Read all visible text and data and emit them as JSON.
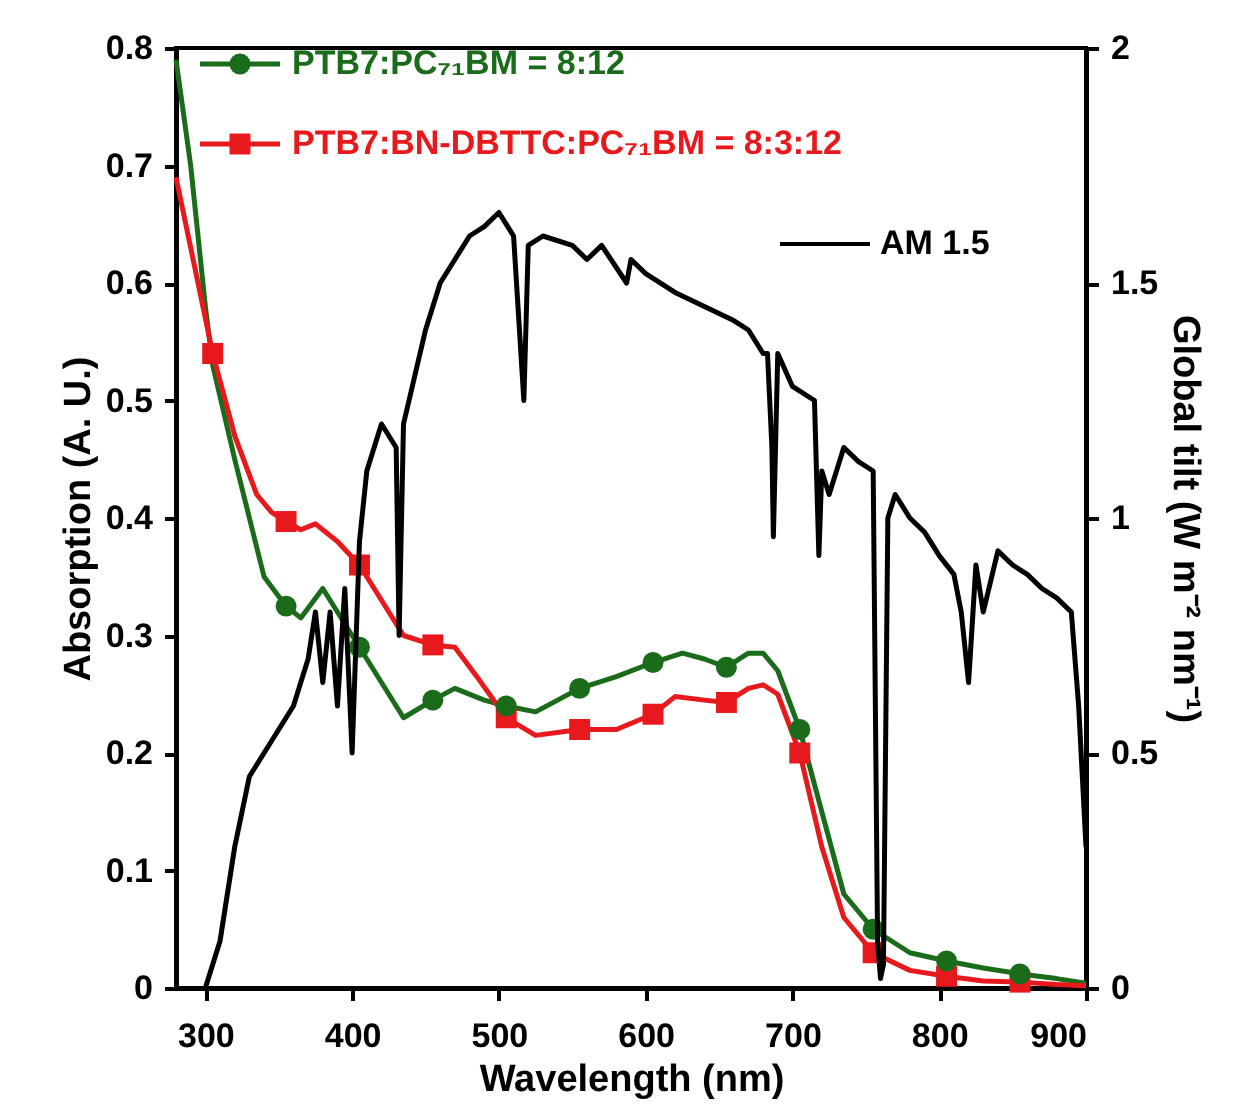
{
  "chart_data": {
    "type": "line",
    "xlabel": "Wavelength (nm)",
    "ylabel": "Absorption (A. U.)",
    "y2label": "Global tilt  (W m⁻² nm⁻¹)",
    "xlim": [
      280,
      900
    ],
    "xticks": [
      300,
      400,
      500,
      600,
      700,
      800,
      900
    ],
    "ylim": [
      0,
      0.8
    ],
    "yticks": [
      0,
      0.1,
      0.2,
      0.3,
      0.4,
      0.5,
      0.6,
      0.7,
      0.8
    ],
    "y2lim": [
      0,
      2
    ],
    "y2ticks": [
      0,
      0.5,
      1,
      1.5,
      2
    ],
    "grid": false,
    "legend": "top left",
    "series": [
      {
        "name": "PTB7:PC₇₁BM = 8:12",
        "color": "#1a6b1a",
        "marker": "none",
        "x": [
          280,
          290,
          300,
          305,
          320,
          330,
          340,
          355,
          365,
          380,
          395,
          405,
          420,
          435,
          455,
          470,
          490,
          505,
          525,
          555,
          580,
          605,
          625,
          640,
          655,
          670,
          680,
          690,
          705,
          720,
          735,
          755,
          780,
          805,
          830,
          855,
          880,
          900
        ],
        "values": [
          0.79,
          0.7,
          0.58,
          0.53,
          0.45,
          0.4,
          0.35,
          0.325,
          0.315,
          0.34,
          0.31,
          0.29,
          0.26,
          0.23,
          0.245,
          0.255,
          0.245,
          0.24,
          0.235,
          0.255,
          0.265,
          0.277,
          0.285,
          0.28,
          0.273,
          0.285,
          0.285,
          0.27,
          0.22,
          0.15,
          0.08,
          0.05,
          0.03,
          0.023,
          0.017,
          0.012,
          0.008,
          0.004
        ]
      },
      {
        "name": "PTB7:BN-DBTTC:PC₇₁BM = 8:3:12",
        "color": "#e8191c",
        "marker": "none",
        "x": [
          280,
          290,
          305,
          320,
          335,
          345,
          355,
          365,
          375,
          390,
          405,
          420,
          435,
          455,
          470,
          485,
          505,
          525,
          555,
          580,
          605,
          620,
          640,
          655,
          670,
          680,
          690,
          705,
          720,
          735,
          755,
          780,
          805,
          830,
          855,
          880,
          900
        ],
        "values": [
          0.69,
          0.63,
          0.54,
          0.47,
          0.42,
          0.405,
          0.397,
          0.39,
          0.395,
          0.38,
          0.36,
          0.33,
          0.3,
          0.292,
          0.29,
          0.265,
          0.23,
          0.215,
          0.22,
          0.22,
          0.233,
          0.248,
          0.245,
          0.243,
          0.255,
          0.258,
          0.25,
          0.2,
          0.12,
          0.06,
          0.03,
          0.015,
          0.01,
          0.006,
          0.005,
          0.003,
          0.002
        ]
      },
      {
        "type": "scatter",
        "color": "#e8191c",
        "marker": "square",
        "x": [
          305,
          355,
          405,
          455,
          505,
          555,
          605,
          655,
          705,
          755,
          805,
          855
        ],
        "values": [
          0.54,
          0.397,
          0.36,
          0.292,
          0.23,
          0.22,
          0.233,
          0.243,
          0.2,
          0.03,
          0.01,
          0.005
        ]
      },
      {
        "type": "scatter",
        "color": "#1a6b1a",
        "marker": "circle",
        "x": [
          355,
          405,
          455,
          505,
          555,
          605,
          655,
          705,
          755,
          805,
          855
        ],
        "values": [
          0.325,
          0.29,
          0.245,
          0.24,
          0.255,
          0.277,
          0.273,
          0.22,
          0.05,
          0.023,
          0.012
        ]
      },
      {
        "name": "AM 1.5",
        "axis": "y2",
        "color": "#000000",
        "marker": "none",
        "x": [
          300,
          310,
          320,
          330,
          340,
          350,
          360,
          370,
          375,
          380,
          385,
          390,
          395,
          400,
          405,
          410,
          420,
          430,
          432,
          435,
          450,
          460,
          470,
          480,
          490,
          500,
          510,
          517,
          520,
          530,
          550,
          560,
          570,
          587,
          590,
          600,
          620,
          640,
          660,
          670,
          680,
          683,
          686,
          687,
          690,
          700,
          715,
          718,
          720,
          725,
          735,
          745,
          755,
          758,
          760,
          762,
          765,
          770,
          780,
          790,
          800,
          810,
          815,
          820,
          825,
          830,
          840,
          850,
          860,
          870,
          880,
          890,
          895,
          900
        ],
        "values": [
          0,
          0.1,
          0.3,
          0.45,
          0.5,
          0.55,
          0.6,
          0.7,
          0.8,
          0.65,
          0.8,
          0.6,
          0.85,
          0.5,
          0.95,
          1.1,
          1.2,
          1.15,
          0.75,
          1.2,
          1.4,
          1.5,
          1.55,
          1.6,
          1.62,
          1.65,
          1.6,
          1.25,
          1.58,
          1.6,
          1.58,
          1.55,
          1.58,
          1.5,
          1.55,
          1.52,
          1.48,
          1.45,
          1.42,
          1.4,
          1.35,
          1.35,
          1.15,
          0.96,
          1.35,
          1.28,
          1.25,
          0.92,
          1.1,
          1.05,
          1.15,
          1.12,
          1.1,
          0.1,
          0.02,
          0.05,
          1.0,
          1.05,
          1.0,
          0.97,
          0.92,
          0.88,
          0.8,
          0.65,
          0.9,
          0.8,
          0.93,
          0.9,
          0.88,
          0.85,
          0.83,
          0.8,
          0.6,
          0.3
        ]
      }
    ]
  }
}
